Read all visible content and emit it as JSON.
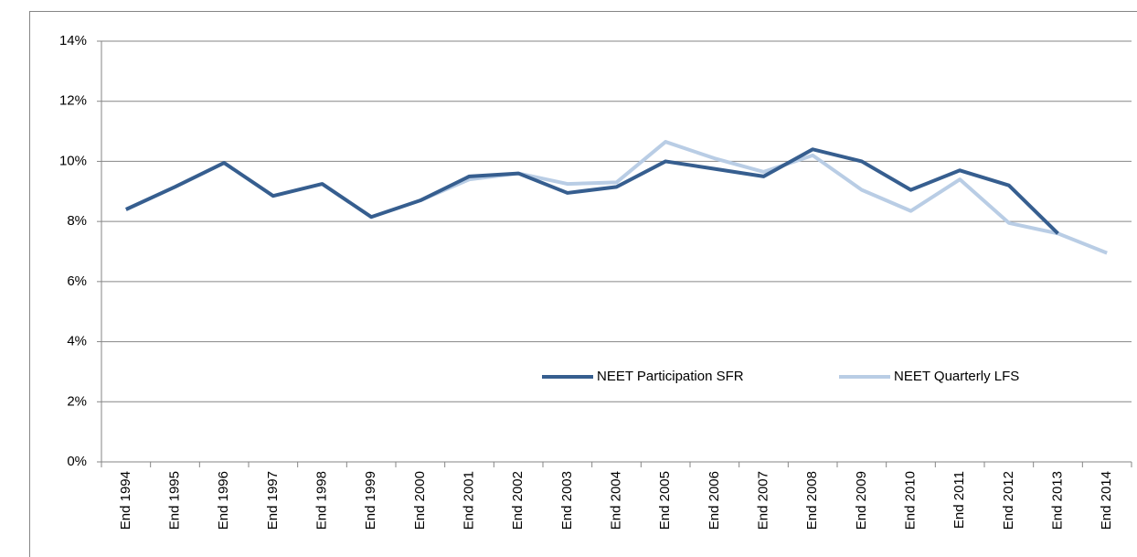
{
  "chart_data": {
    "type": "line",
    "categories": [
      "End 1994",
      "End 1995",
      "End 1996",
      "End 1997",
      "End 1998",
      "End 1999",
      "End 2000",
      "End 2001",
      "End 2002",
      "End 2003",
      "End 2004",
      "End 2005",
      "End 2006",
      "End 2007",
      "End 2008",
      "End 2009",
      "End 2010",
      "End 2011",
      "End 2012",
      "End 2013",
      "End 2014"
    ],
    "series": [
      {
        "name": "NEET Participation SFR",
        "color": "#365e8f",
        "values": [
          8.4,
          9.15,
          9.95,
          8.85,
          9.25,
          8.15,
          8.7,
          9.5,
          9.6,
          8.95,
          9.15,
          10.0,
          9.75,
          9.5,
          10.4,
          10.0,
          9.05,
          9.7,
          9.2,
          7.6,
          null
        ]
      },
      {
        "name": "NEET Quarterly LFS",
        "color": "#b9cde5",
        "values": [
          null,
          null,
          null,
          null,
          null,
          null,
          8.7,
          9.4,
          9.6,
          9.25,
          9.3,
          10.65,
          10.1,
          9.65,
          10.2,
          9.05,
          8.35,
          9.4,
          7.95,
          7.6,
          6.95
        ]
      }
    ],
    "ylim": [
      0,
      14
    ],
    "yticks": [
      {
        "value": 0,
        "label": "0%"
      },
      {
        "value": 2,
        "label": "2%"
      },
      {
        "value": 4,
        "label": "4%"
      },
      {
        "value": 6,
        "label": "6%"
      },
      {
        "value": 8,
        "label": "8%"
      },
      {
        "value": 10,
        "label": "10%"
      },
      {
        "value": 12,
        "label": "12%"
      },
      {
        "value": 14,
        "label": "14%"
      }
    ],
    "grid": true
  }
}
